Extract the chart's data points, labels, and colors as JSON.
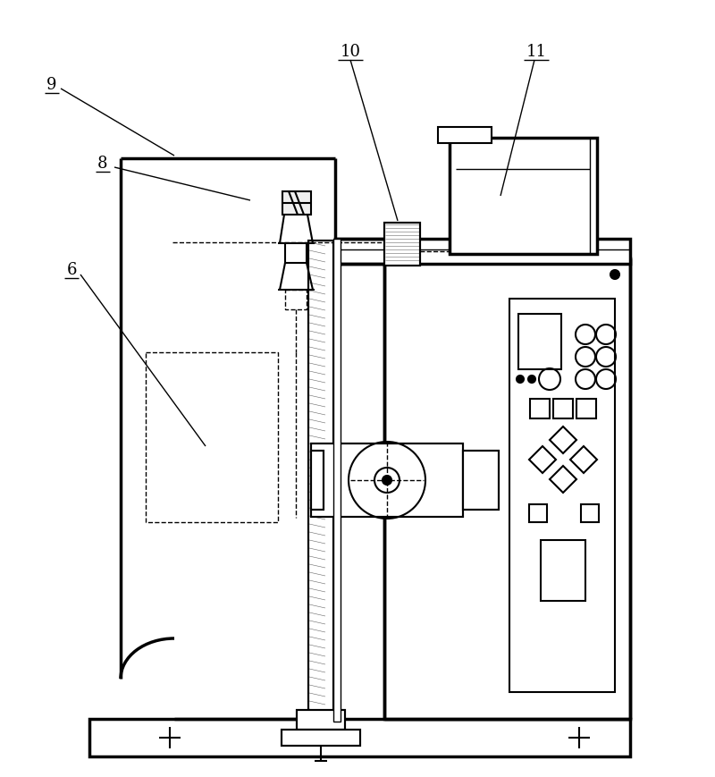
{
  "bg": "#ffffff",
  "lw_thick": 2.5,
  "lw_main": 1.5,
  "lw_thin": 1.0,
  "lw_hair": 0.5
}
